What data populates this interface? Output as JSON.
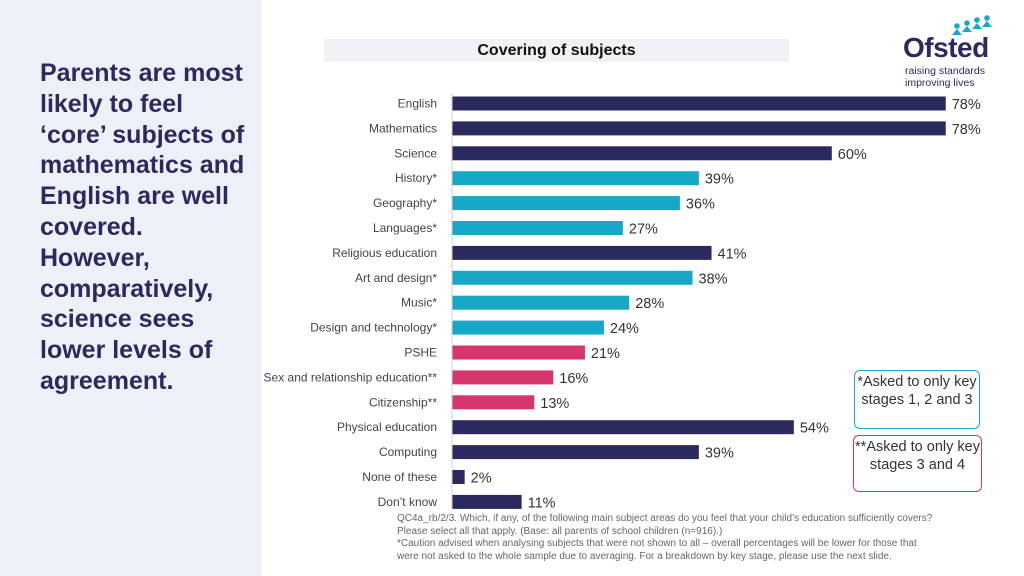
{
  "headline": "Parents are most likely to feel ‘core’ subjects of mathematics and English are well covered. However, comparatively, science sees lower levels of agreement.",
  "logo": {
    "name": "Ofsted",
    "tagline_1": "raising standards",
    "tagline_2": "improving lives"
  },
  "colors": {
    "core": "#2b2a5e",
    "ks12_only": "#16a8c6",
    "pshe": "#d6366d",
    "accent": "#2b2a5e"
  },
  "chart_data": {
    "type": "bar",
    "orientation": "horizontal",
    "title": "Covering of subjects",
    "xlabel": "",
    "ylabel": "",
    "xlim": [
      0,
      100
    ],
    "value_suffix": "%",
    "categories": [
      "English",
      "Mathematics",
      "Science",
      "History*",
      "Geography*",
      "Languages*",
      "Religious education",
      "Art and design*",
      "Music*",
      "Design and technology*",
      "PSHE",
      "Sex and relationship education**",
      "Citizenship**",
      "Physical education",
      "Computing",
      "None of these",
      "Don’t know"
    ],
    "values": [
      78,
      78,
      60,
      39,
      36,
      27,
      41,
      38,
      28,
      24,
      21,
      16,
      13,
      54,
      39,
      2,
      11
    ],
    "bar_groups": [
      "core",
      "core",
      "core",
      "ks12_only",
      "ks12_only",
      "ks12_only",
      "core",
      "ks12_only",
      "ks12_only",
      "ks12_only",
      "pshe",
      "pshe",
      "pshe",
      "core",
      "core",
      "core",
      "core"
    ]
  },
  "notes": {
    "ks12": "*Asked to only key stages 1, 2 and 3",
    "ks34": "**Asked to only key stages 3 and 4"
  },
  "footnote": {
    "line1": "QC4a_rb/2/3. Which, if any, of the following main subject areas do you feel that your child’s education sufficiently covers?",
    "line2": "Please select all that apply. (Base: all parents of school children (n=916).)",
    "line3": "*Caution advised when analysing subjects that were not shown to all – overall percentages will be lower for those that",
    "line4": "were not asked to the whole sample due to averaging. For a breakdown by key stage, please use the next slide."
  }
}
